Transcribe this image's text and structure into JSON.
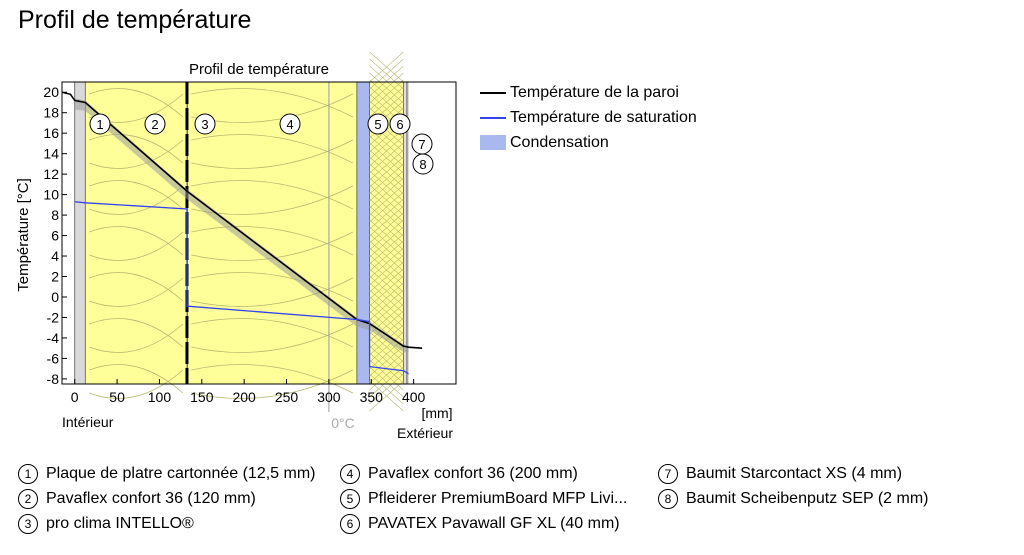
{
  "page_title": "Profil de température",
  "chart_data": {
    "type": "line",
    "title": "Profil de température",
    "xlabel": "[mm]",
    "ylabel": "Température [°C]",
    "xlim": [
      -15,
      450
    ],
    "ylim": [
      -8.5,
      21
    ],
    "x_ticks": [
      0,
      50,
      100,
      150,
      200,
      250,
      300,
      350,
      400
    ],
    "y_ticks": [
      -8,
      -6,
      -4,
      -2,
      0,
      2,
      4,
      6,
      8,
      10,
      12,
      14,
      16,
      18,
      20
    ],
    "interior_label": "Intérieur",
    "exterior_label": "Extérieur",
    "zero_marker_label": "0°C",
    "zero_marker_x": 300,
    "layers": [
      {
        "num": "1",
        "start": 0,
        "end": 12.5,
        "fill": "#d9d9d9"
      },
      {
        "num": "2",
        "start": 12.5,
        "end": 132.5,
        "fill": "#ffff99"
      },
      {
        "num": "3",
        "start": 132.5,
        "end": 133,
        "fill": "#222222"
      },
      {
        "num": "4",
        "start": 133,
        "end": 333,
        "fill": "#ffff99"
      },
      {
        "num": "5",
        "start": 333,
        "end": 348,
        "fill": "#a9b9ef"
      },
      {
        "num": "6",
        "start": 348,
        "end": 388,
        "fill": "#ffff99"
      },
      {
        "num": "7",
        "start": 388,
        "end": 392,
        "fill": "#e0e0e0"
      },
      {
        "num": "8",
        "start": 392,
        "end": 394,
        "fill": "#c0c0c0"
      }
    ],
    "series": [
      {
        "name": "Température de la paroi",
        "color": "#000000",
        "x": [
          -15,
          -5,
          0,
          12.5,
          133,
          333,
          348,
          388,
          394,
          410
        ],
        "y": [
          20,
          19.8,
          19.2,
          19,
          10.3,
          -2.2,
          -2.6,
          -4.8,
          -4.9,
          -5
        ]
      },
      {
        "name": "Température de saturation",
        "color": "#3344ee",
        "x": [
          0,
          12.5,
          132.5,
          132.5,
          133,
          333,
          348,
          348,
          388,
          394
        ],
        "y": [
          9.3,
          9.2,
          8.6,
          -0.9,
          -0.9,
          -2.2,
          -2.4,
          -6.8,
          -7.2,
          -7.5
        ]
      },
      {
        "name": "Condensation",
        "color": "#a9b9ef",
        "x": [],
        "y": []
      }
    ]
  },
  "layer_legend": [
    {
      "num": "1",
      "label": "Plaque de platre cartonnée (12,5 mm)"
    },
    {
      "num": "2",
      "label": "Pavaflex confort 36 (120 mm)"
    },
    {
      "num": "3",
      "label": "pro clima INTELLO®"
    },
    {
      "num": "4",
      "label": "Pavaflex confort 36 (200 mm)"
    },
    {
      "num": "5",
      "label": "Pfleiderer PremiumBoard MFP Livi..."
    },
    {
      "num": "6",
      "label": "PAVATEX Pavawall GF XL (40 mm)"
    },
    {
      "num": "7",
      "label": "Baumit Starcontact XS (4 mm)"
    },
    {
      "num": "8",
      "label": "Baumit Scheibenputz SEP (2 mm)"
    }
  ]
}
